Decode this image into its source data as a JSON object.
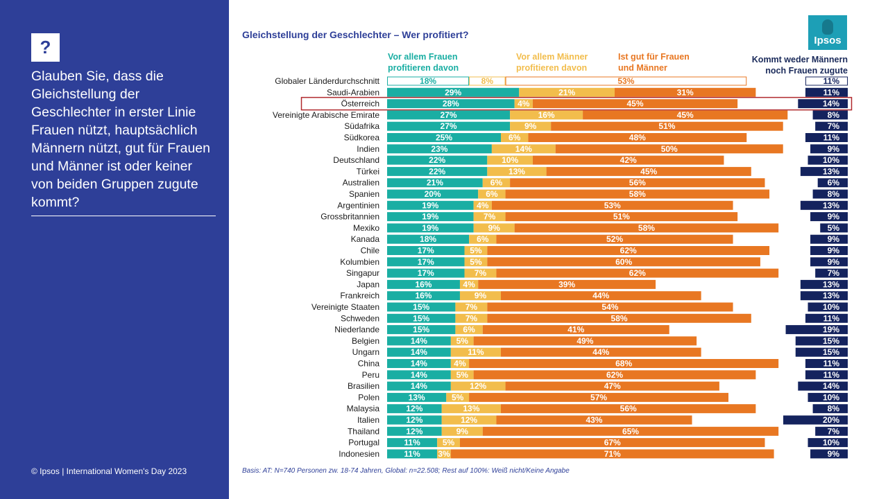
{
  "question_mark": "?",
  "question_text": "Glauben Sie, dass die Gleichstellung der Geschlechter in erster Linie Frauen nützt, hauptsächlich Männern nützt, gut für Frauen und Männer ist oder keiner von beiden Gruppen zugute kommt?",
  "footer_left": "© Ipsos | International Women's Day 2023",
  "logo_text": "Ipsos",
  "basis_text": "Basis: AT: N=740 Personen zw. 18-74 Jahren, Global: n=22.508; Rest auf 100%: Weiß nicht/Keine Angabe",
  "colors": {
    "panel": "#2e3f98",
    "women": "#1aaea3",
    "men": "#f2bd4c",
    "both": "#e87722",
    "none": "#14235e",
    "highlight": "#b0282c"
  },
  "chart_data": {
    "type": "bar",
    "stacked": true,
    "title": "Gleichstellung der Geschlechter – Wer profitiert?",
    "highlight_category": "Österreich",
    "outlined_category": "Globaler Länderdurchschnitt",
    "series_names": [
      "Vor allem Frauen\nprofitieren davon",
      "Vor allem Männer\nprofitieren davon",
      "Ist gut für Frauen\nund Männer",
      "Kommt weder Männern\nnoch Frauen zugute"
    ],
    "rows": [
      {
        "label": "Globaler Länderdurchschnitt",
        "women": 18,
        "men": 8,
        "both": 53,
        "none": 11
      },
      {
        "label": "Saudi-Arabien",
        "women": 29,
        "men": 21,
        "both": 31,
        "none": 11
      },
      {
        "label": "Österreich",
        "women": 28,
        "men": 4,
        "both": 45,
        "none": 14
      },
      {
        "label": "Vereinigte Arabische Emirate",
        "women": 27,
        "men": 16,
        "both": 45,
        "none": 8
      },
      {
        "label": "Südafrika",
        "women": 27,
        "men": 9,
        "both": 51,
        "none": 7
      },
      {
        "label": "Südkorea",
        "women": 25,
        "men": 6,
        "both": 48,
        "none": 11
      },
      {
        "label": "Indien",
        "women": 23,
        "men": 14,
        "both": 50,
        "none": 9
      },
      {
        "label": "Deutschland",
        "women": 22,
        "men": 10,
        "both": 42,
        "none": 10
      },
      {
        "label": "Türkei",
        "women": 22,
        "men": 13,
        "both": 45,
        "none": 13
      },
      {
        "label": "Australien",
        "women": 21,
        "men": 6,
        "both": 56,
        "none": 6
      },
      {
        "label": "Spanien",
        "women": 20,
        "men": 6,
        "both": 58,
        "none": 8
      },
      {
        "label": "Argentinien",
        "women": 19,
        "men": 4,
        "both": 53,
        "none": 13
      },
      {
        "label": "Grossbritannien",
        "women": 19,
        "men": 7,
        "both": 51,
        "none": 9
      },
      {
        "label": "Mexiko",
        "women": 19,
        "men": 9,
        "both": 58,
        "none": 5
      },
      {
        "label": "Kanada",
        "women": 18,
        "men": 6,
        "both": 52,
        "none": 9
      },
      {
        "label": "Chile",
        "women": 17,
        "men": 5,
        "both": 62,
        "none": 9
      },
      {
        "label": "Kolumbien",
        "women": 17,
        "men": 5,
        "both": 60,
        "none": 9
      },
      {
        "label": "Singapur",
        "women": 17,
        "men": 7,
        "both": 62,
        "none": 7
      },
      {
        "label": "Japan",
        "women": 16,
        "men": 4,
        "both": 39,
        "none": 13
      },
      {
        "label": "Frankreich",
        "women": 16,
        "men": 9,
        "both": 44,
        "none": 13
      },
      {
        "label": "Vereinigte Staaten",
        "women": 15,
        "men": 7,
        "both": 54,
        "none": 10
      },
      {
        "label": "Schweden",
        "women": 15,
        "men": 7,
        "both": 58,
        "none": 11
      },
      {
        "label": "Niederlande",
        "women": 15,
        "men": 6,
        "both": 41,
        "none": 19
      },
      {
        "label": "Belgien",
        "women": 14,
        "men": 5,
        "both": 49,
        "none": 15
      },
      {
        "label": "Ungarn",
        "women": 14,
        "men": 11,
        "both": 44,
        "none": 15
      },
      {
        "label": "China",
        "women": 14,
        "men": 4,
        "both": 68,
        "none": 11
      },
      {
        "label": "Peru",
        "women": 14,
        "men": 5,
        "both": 62,
        "none": 11
      },
      {
        "label": "Brasilien",
        "women": 14,
        "men": 12,
        "both": 47,
        "none": 14
      },
      {
        "label": "Polen",
        "women": 13,
        "men": 5,
        "both": 57,
        "none": 10
      },
      {
        "label": "Malaysia",
        "women": 12,
        "men": 13,
        "both": 56,
        "none": 8
      },
      {
        "label": "Italien",
        "women": 12,
        "men": 12,
        "both": 43,
        "none": 20
      },
      {
        "label": "Thailand",
        "women": 12,
        "men": 9,
        "both": 65,
        "none": 7
      },
      {
        "label": "Portugal",
        "women": 11,
        "men": 5,
        "both": 67,
        "none": 10
      },
      {
        "label": "Indonesien",
        "women": 11,
        "men": 3,
        "both": 71,
        "none": 9
      }
    ]
  }
}
